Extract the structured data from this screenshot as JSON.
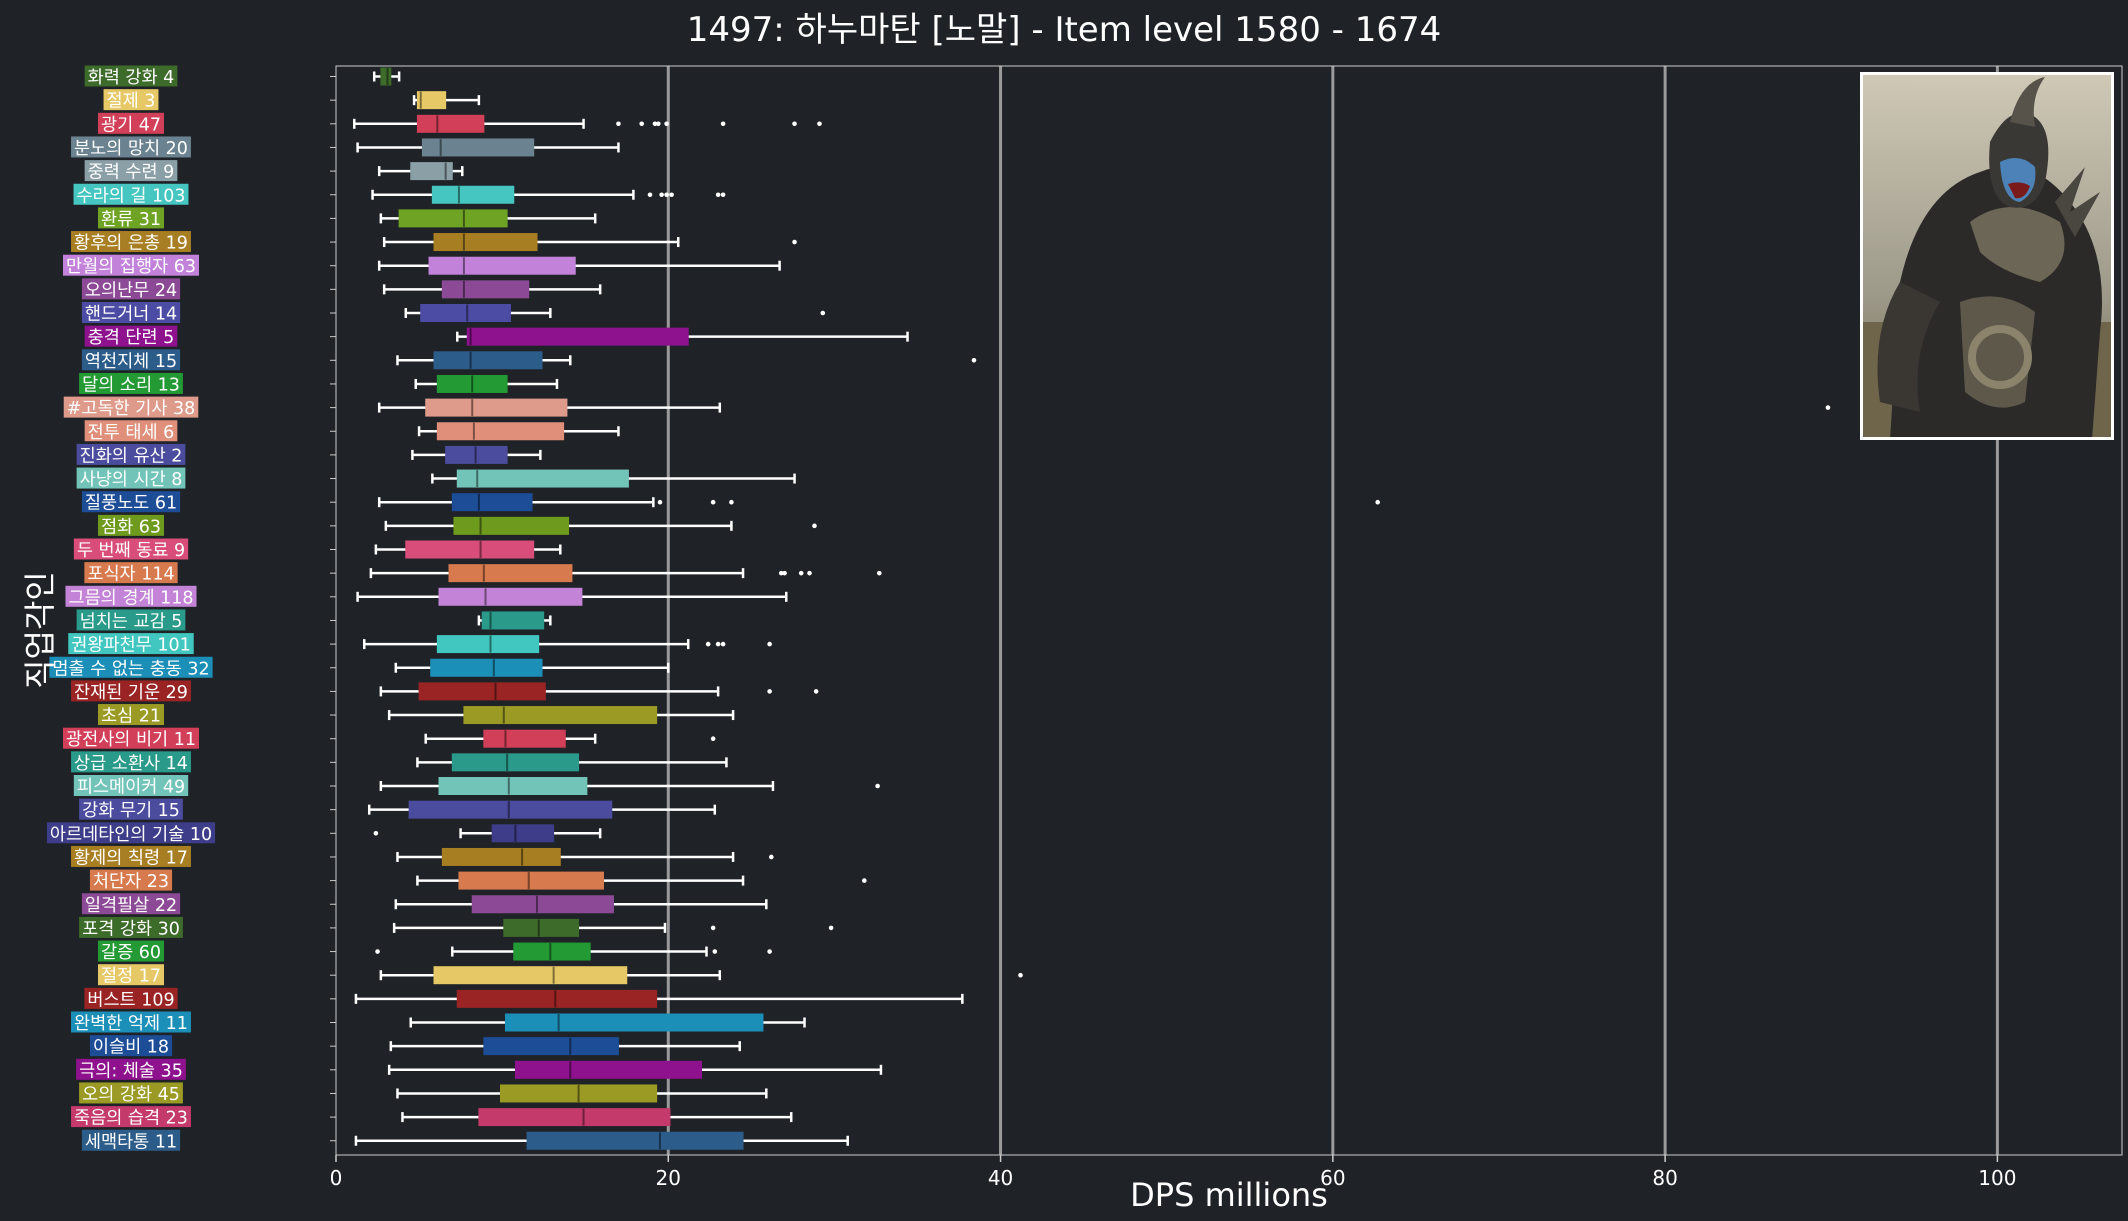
{
  "chart_data": {
    "type": "box",
    "title": "1497: 하누마탄 [노말] - Item level 1580 - 1674",
    "xlabel": "DPS millions",
    "ylabel": "직업각인",
    "xlim": [
      0,
      107.5
    ],
    "xticks": [
      0,
      20,
      40,
      60,
      80,
      100
    ],
    "grid": "vertical",
    "categories": [
      {
        "label": "화력 강화 4",
        "color": "#3d6b2a",
        "min": 2.3,
        "q1": 2.7,
        "median": 3.1,
        "q3": 3.3,
        "max": 3.8,
        "outliers": []
      },
      {
        "label": "절제 3",
        "color": "#e6c866",
        "min": 4.7,
        "q1": 4.9,
        "median": 5.1,
        "q3": 6.6,
        "max": 8.6,
        "outliers": []
      },
      {
        "label": "광기 47",
        "color": "#d23f58",
        "min": 1.1,
        "q1": 4.9,
        "median": 6.1,
        "q3": 8.9,
        "max": 14.9,
        "outliers": [
          17.0,
          18.4,
          19.2,
          19.4,
          19.9,
          23.3,
          27.6,
          29.1
        ]
      },
      {
        "label": "분노의 망치 20",
        "color": "#6b8390",
        "min": 1.3,
        "q1": 5.2,
        "median": 6.3,
        "q3": 11.9,
        "max": 17.0,
        "outliers": []
      },
      {
        "label": "중력 수련 9",
        "color": "#8a9fa6",
        "min": 2.6,
        "q1": 4.5,
        "median": 6.6,
        "q3": 7.0,
        "max": 7.6,
        "outliers": []
      },
      {
        "label": "수라의 길 103",
        "color": "#46c6c0",
        "min": 2.2,
        "q1": 5.8,
        "median": 7.4,
        "q3": 10.7,
        "max": 17.9,
        "outliers": [
          18.9,
          19.6,
          19.9,
          20.2,
          23.0,
          23.3
        ]
      },
      {
        "label": "환류 31",
        "color": "#6ea324",
        "min": 2.7,
        "q1": 3.8,
        "median": 7.7,
        "q3": 10.3,
        "max": 15.6,
        "outliers": []
      },
      {
        "label": "황후의 은총 19",
        "color": "#a87e22",
        "min": 2.9,
        "q1": 5.9,
        "median": 7.7,
        "q3": 12.1,
        "max": 20.6,
        "outliers": [
          27.6
        ]
      },
      {
        "label": "만월의 집행자 63",
        "color": "#c282da",
        "min": 2.6,
        "q1": 5.6,
        "median": 7.7,
        "q3": 14.4,
        "max": 26.7,
        "outliers": []
      },
      {
        "label": "오의난무 24",
        "color": "#8c4a96",
        "min": 2.9,
        "q1": 6.4,
        "median": 7.7,
        "q3": 11.6,
        "max": 15.9,
        "outliers": []
      },
      {
        "label": "핸드거너 14",
        "color": "#4d4ca4",
        "min": 4.2,
        "q1": 5.1,
        "median": 7.9,
        "q3": 10.5,
        "max": 12.9,
        "outliers": [
          29.3
        ]
      },
      {
        "label": "충격 단련 5",
        "color": "#8e128e",
        "min": 7.3,
        "q1": 7.9,
        "median": 8.1,
        "q3": 21.2,
        "max": 34.4,
        "outliers": []
      },
      {
        "label": "역천지체 15",
        "color": "#2c5c8a",
        "min": 3.7,
        "q1": 5.9,
        "median": 8.1,
        "q3": 12.4,
        "max": 14.1,
        "outliers": [
          38.4
        ]
      },
      {
        "label": "달의 소리 13",
        "color": "#239a34",
        "min": 4.8,
        "q1": 6.1,
        "median": 8.2,
        "q3": 10.3,
        "max": 13.3,
        "outliers": []
      },
      {
        "label": "#고독한 기사 38",
        "color": "#de9a8a",
        "min": 2.6,
        "q1": 5.4,
        "median": 8.2,
        "q3": 13.9,
        "max": 23.1,
        "outliers": [
          89.8
        ]
      },
      {
        "label": "전투 태세 6",
        "color": "#e0907a",
        "min": 5.0,
        "q1": 6.1,
        "median": 8.3,
        "q3": 13.7,
        "max": 17.0,
        "outliers": []
      },
      {
        "label": "진화의 유산 2",
        "color": "#4b4c9e",
        "min": 4.6,
        "q1": 6.6,
        "median": 8.4,
        "q3": 10.3,
        "max": 12.3,
        "outliers": []
      },
      {
        "label": "사냥의 시간 8",
        "color": "#72c4b8",
        "min": 5.8,
        "q1": 7.3,
        "median": 8.5,
        "q3": 17.6,
        "max": 27.6,
        "outliers": []
      },
      {
        "label": "질풍노도 61",
        "color": "#1d4d96",
        "min": 2.6,
        "q1": 7.0,
        "median": 8.6,
        "q3": 11.8,
        "max": 19.1,
        "outliers": [
          19.5,
          22.7,
          23.8,
          62.7
        ]
      },
      {
        "label": "점화 63",
        "color": "#6e9a1d",
        "min": 3.0,
        "q1": 7.1,
        "median": 8.7,
        "q3": 14.0,
        "max": 23.8,
        "outliers": [
          28.8
        ]
      },
      {
        "label": "두 번째 동료 9",
        "color": "#d84d7a",
        "min": 2.4,
        "q1": 4.2,
        "median": 8.7,
        "q3": 11.9,
        "max": 13.5,
        "outliers": []
      },
      {
        "label": "포식자 114",
        "color": "#d77a4e",
        "min": 2.1,
        "q1": 6.8,
        "median": 8.9,
        "q3": 14.2,
        "max": 24.5,
        "outliers": [
          26.8,
          27.0,
          28.0,
          28.5,
          32.7
        ]
      },
      {
        "label": "그믐의 경계 118",
        "color": "#c383d6",
        "min": 1.3,
        "q1": 6.2,
        "median": 9.0,
        "q3": 14.8,
        "max": 27.1,
        "outliers": []
      },
      {
        "label": "넘치는 교감 5",
        "color": "#2a9a8a",
        "min": 8.6,
        "q1": 8.8,
        "median": 9.3,
        "q3": 12.5,
        "max": 12.9,
        "outliers": []
      },
      {
        "label": "권왕파천무 101",
        "color": "#42c6c0",
        "min": 1.7,
        "q1": 6.1,
        "median": 9.3,
        "q3": 12.2,
        "max": 21.2,
        "outliers": [
          22.4,
          23.0,
          23.3,
          26.1
        ]
      },
      {
        "label": "멈출 수 없는 충동 32",
        "color": "#1c8fb8",
        "min": 3.6,
        "q1": 5.7,
        "median": 9.5,
        "q3": 12.4,
        "max": 20.0,
        "outliers": []
      },
      {
        "label": "잔재된 기운 29",
        "color": "#9a2424",
        "min": 2.7,
        "q1": 5.0,
        "median": 9.6,
        "q3": 12.6,
        "max": 23.0,
        "outliers": [
          26.1,
          28.9
        ]
      },
      {
        "label": "초심 21",
        "color": "#9a9a24",
        "min": 3.2,
        "q1": 7.7,
        "median": 10.1,
        "q3": 19.3,
        "max": 23.9,
        "outliers": []
      },
      {
        "label": "광전사의 비기 11",
        "color": "#d23f58",
        "min": 5.4,
        "q1": 8.9,
        "median": 10.2,
        "q3": 13.8,
        "max": 15.6,
        "outliers": [
          22.7
        ]
      },
      {
        "label": "상급 소환사 14",
        "color": "#2a9a8a",
        "min": 4.9,
        "q1": 7.0,
        "median": 10.3,
        "q3": 14.6,
        "max": 23.5,
        "outliers": []
      },
      {
        "label": "피스메이커 49",
        "color": "#72c4b8",
        "min": 2.7,
        "q1": 6.2,
        "median": 10.4,
        "q3": 15.1,
        "max": 26.3,
        "outliers": [
          32.6
        ]
      },
      {
        "label": "강화 무기 15",
        "color": "#4b4c9e",
        "min": 2.0,
        "q1": 4.4,
        "median": 10.4,
        "q3": 16.6,
        "max": 22.8,
        "outliers": []
      },
      {
        "label": "아르데타인의 기술 10",
        "color": "#3d3d8a",
        "min": 7.5,
        "q1": 9.4,
        "median": 10.8,
        "q3": 13.1,
        "max": 15.9,
        "outliers": [
          2.4
        ]
      },
      {
        "label": "황제의 칙령 17",
        "color": "#a87e22",
        "min": 3.7,
        "q1": 6.4,
        "median": 11.2,
        "q3": 13.5,
        "max": 23.9,
        "outliers": [
          26.2
        ]
      },
      {
        "label": "처단자 23",
        "color": "#d77a4e",
        "min": 4.9,
        "q1": 7.4,
        "median": 11.6,
        "q3": 16.1,
        "max": 24.5,
        "outliers": [
          31.8
        ]
      },
      {
        "label": "일격필살 22",
        "color": "#8c4a96",
        "min": 3.6,
        "q1": 8.2,
        "median": 12.1,
        "q3": 16.7,
        "max": 25.9,
        "outliers": []
      },
      {
        "label": "포격 강화 30",
        "color": "#3d6b2a",
        "min": 3.5,
        "q1": 10.1,
        "median": 12.2,
        "q3": 14.6,
        "max": 19.8,
        "outliers": [
          22.7,
          29.8
        ]
      },
      {
        "label": "갈증 60",
        "color": "#239a34",
        "min": 7.0,
        "q1": 10.7,
        "median": 12.9,
        "q3": 15.3,
        "max": 22.3,
        "outliers": [
          2.5,
          22.8,
          26.1
        ]
      },
      {
        "label": "절정 17",
        "color": "#e6c866",
        "min": 2.7,
        "q1": 5.9,
        "median": 13.1,
        "q3": 17.5,
        "max": 23.1,
        "outliers": [
          41.2
        ]
      },
      {
        "label": "버스트 109",
        "color": "#9a2424",
        "min": 1.2,
        "q1": 7.3,
        "median": 13.2,
        "q3": 19.3,
        "max": 37.7,
        "outliers": []
      },
      {
        "label": "완벽한 억제 11",
        "color": "#1c8fb8",
        "min": 4.5,
        "q1": 10.2,
        "median": 13.4,
        "q3": 25.7,
        "max": 28.2,
        "outliers": []
      },
      {
        "label": "이슬비 18",
        "color": "#1d4d96",
        "min": 3.3,
        "q1": 8.9,
        "median": 14.1,
        "q3": 17.0,
        "max": 24.3,
        "outliers": []
      },
      {
        "label": "극의: 체술 35",
        "color": "#8e128e",
        "min": 3.2,
        "q1": 10.8,
        "median": 14.1,
        "q3": 22.0,
        "max": 32.8,
        "outliers": []
      },
      {
        "label": "오의 강화 45",
        "color": "#9a9a24",
        "min": 3.7,
        "q1": 9.9,
        "median": 14.6,
        "q3": 19.3,
        "max": 25.9,
        "outliers": []
      },
      {
        "label": "죽음의 습격 23",
        "color": "#c43a6a",
        "min": 4.0,
        "q1": 8.6,
        "median": 14.9,
        "q3": 20.1,
        "max": 27.4,
        "outliers": []
      },
      {
        "label": "세맥타통 11",
        "color": "#2c5c8a",
        "min": 1.2,
        "q1": 11.5,
        "median": 19.5,
        "q3": 24.5,
        "max": 30.8,
        "outliers": []
      }
    ]
  },
  "boss_image": {
    "name": "boss-portrait",
    "colors": {
      "sky": "#b9b6a6",
      "ground": "#776c4e",
      "body": "#2c2a29",
      "armor": "#6c6656",
      "face": "#4d82b8",
      "frame": "#ffffff"
    }
  },
  "theme": {
    "background": "#1f2227",
    "axis_color": "#cccccc",
    "grid_color": "#9a9a9a",
    "whisker_color": "#ffffff",
    "text_color": "#ffffff"
  }
}
